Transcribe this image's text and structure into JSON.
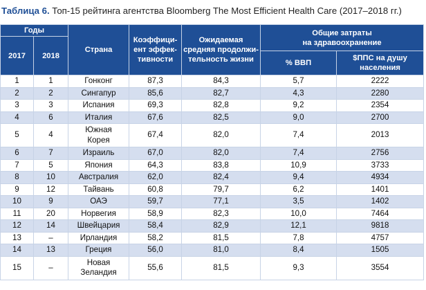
{
  "caption": {
    "label": "Таблица 6.",
    "text": " Топ-15 рейтинга агентства Bloomberg The Most Efficient Health Care (2017–2018 гг.)"
  },
  "headers": {
    "years": "Годы",
    "y2017": "2017",
    "y2018": "2018",
    "country": "Страна",
    "coef_1": "Коэффици-",
    "coef_2": "ент эффек-",
    "coef_3": "тивности",
    "life_1": "Ожидаемая",
    "life_2": "средняя продолжи-",
    "life_3": "тельность жизни",
    "total_1": "Общие затраты",
    "total_2": "на здравоохранение",
    "gdp": "% ВВП",
    "ppp_1": "$ППС на душу",
    "ppp_2": "населения"
  },
  "rows": [
    {
      "r2017": "1",
      "r2018": "1",
      "country": "Гонконг",
      "coef": "87,3",
      "life": "84,3",
      "gdp": "5,7",
      "ppp": "2222"
    },
    {
      "r2017": "2",
      "r2018": "2",
      "country": "Сингапур",
      "coef": "85,6",
      "life": "82,7",
      "gdp": "4,3",
      "ppp": "2280"
    },
    {
      "r2017": "3",
      "r2018": "3",
      "country": "Испания",
      "coef": "69,3",
      "life": "82,8",
      "gdp": "9,2",
      "ppp": "2354"
    },
    {
      "r2017": "4",
      "r2018": "6",
      "country": "Италия",
      "coef": "67,6",
      "life": "82,5",
      "gdp": "9,0",
      "ppp": "2700"
    },
    {
      "r2017": "5",
      "r2018": "4",
      "country": "Южная",
      "country2": "Корея",
      "coef": "67,4",
      "life": "82,0",
      "gdp": "7,4",
      "ppp": "2013"
    },
    {
      "r2017": "6",
      "r2018": "7",
      "country": "Израиль",
      "coef": "67,0",
      "life": "82,0",
      "gdp": "7,4",
      "ppp": "2756"
    },
    {
      "r2017": "7",
      "r2018": "5",
      "country": "Япония",
      "coef": "64,3",
      "life": "83,8",
      "gdp": "10,9",
      "ppp": "3733"
    },
    {
      "r2017": "8",
      "r2018": "10",
      "country": "Австралия",
      "coef": "62,0",
      "life": "82,4",
      "gdp": "9,4",
      "ppp": "4934"
    },
    {
      "r2017": "9",
      "r2018": "12",
      "country": "Тайвань",
      "coef": "60,8",
      "life": "79,7",
      "gdp": "6,2",
      "ppp": "1401"
    },
    {
      "r2017": "10",
      "r2018": "9",
      "country": "ОАЭ",
      "coef": "59,7",
      "life": "77,1",
      "gdp": "3,5",
      "ppp": "1402"
    },
    {
      "r2017": "11",
      "r2018": "20",
      "country": "Норвегия",
      "coef": "58,9",
      "life": "82,3",
      "gdp": "10,0",
      "ppp": "7464"
    },
    {
      "r2017": "12",
      "r2018": "14",
      "country": "Швейцария",
      "coef": "58,4",
      "life": "82,9",
      "gdp": "12,1",
      "ppp": "9818"
    },
    {
      "r2017": "13",
      "r2018": "–",
      "country": "Ирландия",
      "coef": "58,2",
      "life": "81,5",
      "gdp": "7,8",
      "ppp": "4757"
    },
    {
      "r2017": "14",
      "r2018": "13",
      "country": "Греция",
      "coef": "56,0",
      "life": "81,0",
      "gdp": "8,4",
      "ppp": "1505"
    },
    {
      "r2017": "15",
      "r2018": "–",
      "country": "Новая",
      "country2": "Зеландия",
      "coef": "55,6",
      "life": "81,5",
      "gdp": "9,3",
      "ppp": "3554"
    }
  ]
}
